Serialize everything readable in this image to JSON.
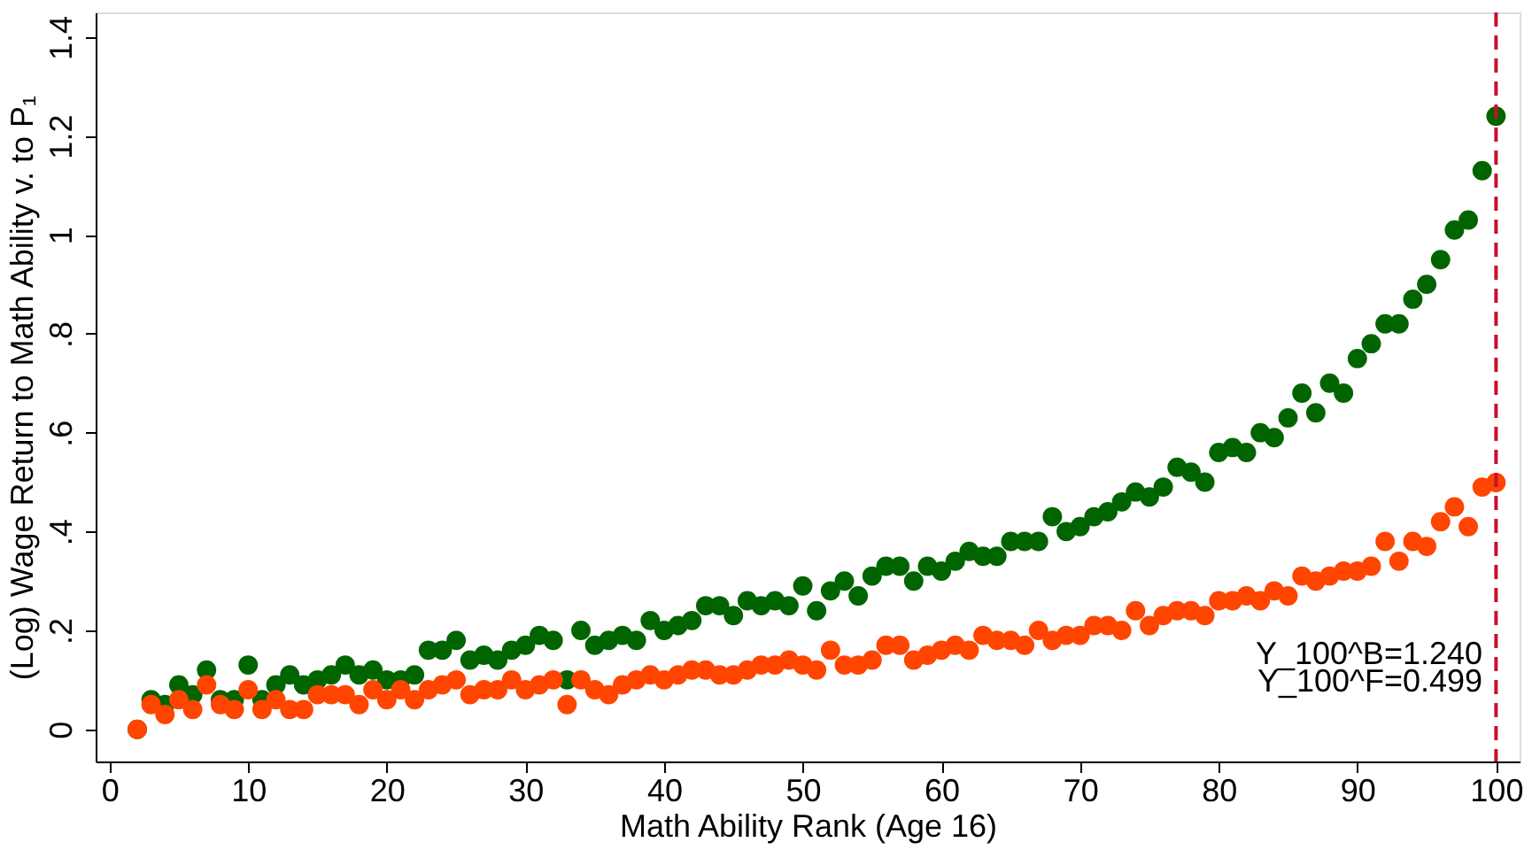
{
  "chart_data": {
    "type": "scatter",
    "xlabel": "Math Ability Rank (Age 16)",
    "ylabel": "(Log) Wage Return to Math Ability v. to P₁",
    "x": [
      2,
      3,
      4,
      5,
      6,
      7,
      8,
      9,
      10,
      11,
      12,
      13,
      14,
      15,
      16,
      17,
      18,
      19,
      20,
      21,
      22,
      23,
      24,
      25,
      26,
      27,
      28,
      29,
      30,
      31,
      32,
      33,
      34,
      35,
      36,
      37,
      38,
      39,
      40,
      41,
      42,
      43,
      44,
      45,
      46,
      47,
      48,
      49,
      50,
      51,
      52,
      53,
      54,
      55,
      56,
      57,
      58,
      59,
      60,
      61,
      62,
      63,
      64,
      65,
      66,
      67,
      68,
      69,
      70,
      71,
      72,
      73,
      74,
      75,
      76,
      77,
      78,
      79,
      80,
      81,
      82,
      83,
      84,
      85,
      86,
      87,
      88,
      89,
      90,
      91,
      92,
      93,
      94,
      95,
      96,
      97,
      98,
      99,
      100
    ],
    "series": [
      {
        "color": "#006400",
        "values": [
          0,
          0.06,
          0.05,
          0.09,
          0.07,
          0.12,
          0.06,
          0.06,
          0.13,
          0.06,
          0.09,
          0.11,
          0.09,
          0.1,
          0.11,
          0.13,
          0.11,
          0.12,
          0.1,
          0.1,
          0.11,
          0.16,
          0.16,
          0.18,
          0.14,
          0.15,
          0.14,
          0.16,
          0.17,
          0.19,
          0.18,
          0.1,
          0.2,
          0.17,
          0.18,
          0.19,
          0.18,
          0.22,
          0.2,
          0.21,
          0.22,
          0.25,
          0.25,
          0.23,
          0.26,
          0.25,
          0.26,
          0.25,
          0.29,
          0.24,
          0.28,
          0.3,
          0.27,
          0.31,
          0.33,
          0.33,
          0.3,
          0.33,
          0.32,
          0.34,
          0.36,
          0.35,
          0.35,
          0.38,
          0.38,
          0.38,
          0.43,
          0.4,
          0.41,
          0.43,
          0.44,
          0.46,
          0.48,
          0.47,
          0.49,
          0.53,
          0.52,
          0.5,
          0.56,
          0.57,
          0.56,
          0.6,
          0.59,
          0.63,
          0.68,
          0.64,
          0.7,
          0.68,
          0.75,
          0.78,
          0.82,
          0.82,
          0.87,
          0.9,
          0.95,
          1.01,
          1.03,
          1.13,
          1.24
        ]
      },
      {
        "color": "#ff4500",
        "values": [
          0,
          0.05,
          0.03,
          0.06,
          0.04,
          0.09,
          0.05,
          0.04,
          0.08,
          0.04,
          0.06,
          0.04,
          0.04,
          0.07,
          0.07,
          0.07,
          0.05,
          0.08,
          0.06,
          0.08,
          0.06,
          0.08,
          0.09,
          0.1,
          0.07,
          0.08,
          0.08,
          0.1,
          0.08,
          0.09,
          0.1,
          0.05,
          0.1,
          0.08,
          0.07,
          0.09,
          0.1,
          0.11,
          0.1,
          0.11,
          0.12,
          0.12,
          0.11,
          0.11,
          0.12,
          0.13,
          0.13,
          0.14,
          0.13,
          0.12,
          0.16,
          0.13,
          0.13,
          0.14,
          0.17,
          0.17,
          0.14,
          0.15,
          0.16,
          0.17,
          0.16,
          0.19,
          0.18,
          0.18,
          0.17,
          0.2,
          0.18,
          0.19,
          0.19,
          0.21,
          0.21,
          0.2,
          0.24,
          0.21,
          0.23,
          0.24,
          0.24,
          0.23,
          0.26,
          0.26,
          0.27,
          0.26,
          0.28,
          0.27,
          0.31,
          0.3,
          0.31,
          0.32,
          0.32,
          0.33,
          0.38,
          0.34,
          0.38,
          0.37,
          0.42,
          0.45,
          0.41,
          0.49,
          0.499
        ]
      }
    ],
    "xlim": [
      -1,
      101.7
    ],
    "xticks": [
      0,
      10,
      20,
      30,
      40,
      50,
      60,
      70,
      80,
      90,
      100
    ],
    "ylim": [
      -0.065,
      1.45
    ],
    "yticks": [
      0,
      {
        "value": 0.2,
        "label": ".2"
      },
      {
        "value": 0.4,
        "label": ".4"
      },
      {
        "value": 0.6,
        "label": ".6"
      },
      {
        "value": 0.8,
        "label": ".8"
      },
      1,
      1.2,
      1.4
    ],
    "ref_lines": [
      {
        "axis": "x",
        "value": 100,
        "color": "#c8102e",
        "line_style": "dashed"
      }
    ],
    "annotations": [
      "Y_100^B=1.240",
      "Y_100^F=0.499"
    ],
    "marker": "circle",
    "grid": false,
    "legend": false
  }
}
